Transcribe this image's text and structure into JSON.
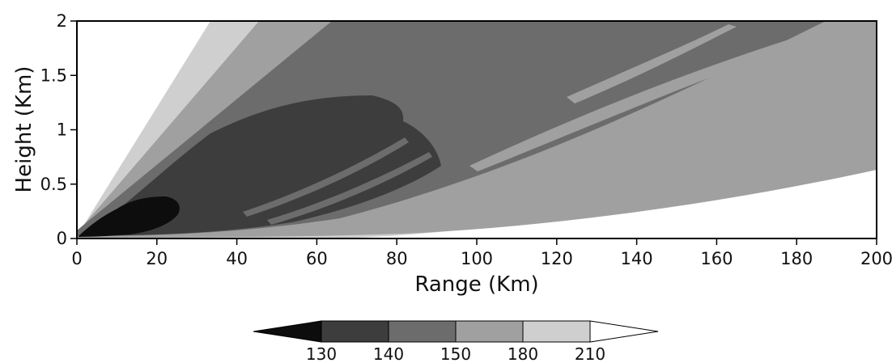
{
  "chart_data": {
    "type": "heatmap",
    "title": "",
    "xlabel": "Range (Km)",
    "ylabel": "Height (Km)",
    "xlim": [
      0,
      200
    ],
    "ylim": [
      0,
      2
    ],
    "xticks": [
      "0",
      "20",
      "40",
      "60",
      "80",
      "100",
      "120",
      "140",
      "160",
      "180",
      "200"
    ],
    "yticks": [
      "0",
      "0.5",
      "1",
      "1.5",
      "2"
    ],
    "colorbar": {
      "boundaries": [
        "130",
        "140",
        "150",
        "180",
        "210"
      ],
      "levels": [
        {
          "range": "<130",
          "color": "#0d0d0d"
        },
        {
          "range": "130-140",
          "color": "#3d3d3d"
        },
        {
          "range": "140-150",
          "color": "#6c6c6c"
        },
        {
          "range": "150-180",
          "color": "#a0a0a0"
        },
        {
          "range": "180-210",
          "color": "#cfcfcf"
        },
        {
          "range": ">210",
          "color": "#ffffff"
        }
      ],
      "extend": "both"
    },
    "regions": [
      {
        "level": "150-180",
        "range_km": [
          0,
          200
        ],
        "height_km": [
          0.05,
          2
        ]
      },
      {
        "level": "140-150",
        "range_km": [
          5,
          190
        ],
        "height_km": [
          0.03,
          2
        ]
      },
      {
        "level": "130-140",
        "range_km": [
          10,
          90
        ],
        "height_km": [
          0.05,
          1.3
        ]
      },
      {
        "level": "<130",
        "range_km": [
          2,
          25
        ],
        "height_km": [
          0.02,
          0.38
        ]
      }
    ]
  }
}
